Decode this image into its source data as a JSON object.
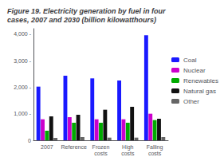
{
  "chart_data": {
    "type": "bar",
    "title": "Figure 19. Electricity generation by fuel in four\ncases, 2007 and 2030 (billion kilowatthours)",
    "categories": [
      "2007",
      "Reference",
      "Frozen\ncosts",
      "High\ncosts",
      "Falling\ncosts"
    ],
    "series": [
      {
        "name": "Coal",
        "color": "#1a1aff",
        "values": [
          2020,
          2430,
          2330,
          2250,
          3950
        ]
      },
      {
        "name": "Nuclear",
        "color": "#cc00cc",
        "values": [
          790,
          870,
          790,
          790,
          1000
        ]
      },
      {
        "name": "Renewables",
        "color": "#00aa00",
        "values": [
          360,
          660,
          660,
          660,
          760
        ]
      },
      {
        "name": "Natural gas",
        "color": "#111111",
        "values": [
          900,
          960,
          1150,
          1260,
          810
        ]
      },
      {
        "name": "Other",
        "color": "#666666",
        "values": [
          90,
          120,
          100,
          100,
          120
        ]
      }
    ],
    "ylim": [
      0,
      4200
    ],
    "yticks": [
      0,
      {
        "value": 1000,
        "label": "1,000 -"
      },
      {
        "value": 2000,
        "label": "2,000 -"
      },
      {
        "value": 3000,
        "label": "3,000 -"
      },
      {
        "value": 4000,
        "label": "4,000 -"
      }
    ],
    "grid": false,
    "legend": "right"
  }
}
